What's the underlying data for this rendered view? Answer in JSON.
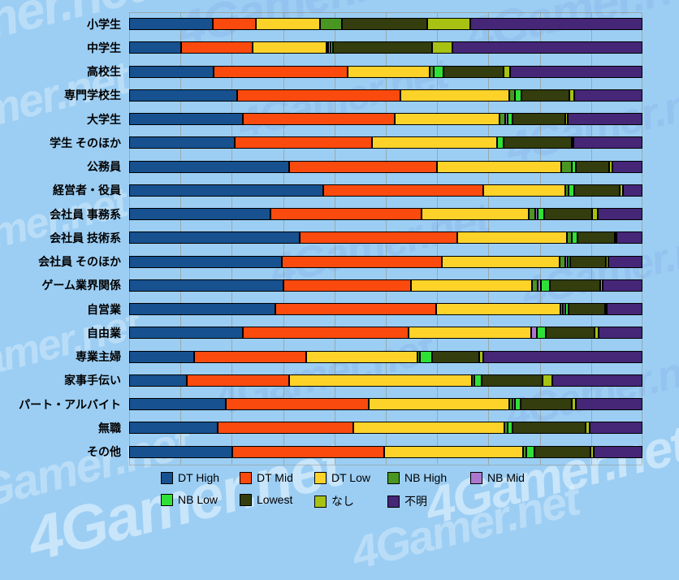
{
  "watermark": "4Gamer.net",
  "page": {
    "background": "#9ccef4",
    "gridline_color": "#968a70"
  },
  "chart_data": {
    "type": "bar",
    "stacked": true,
    "orientation": "horizontal",
    "unit": "percent",
    "xlim": [
      0,
      100
    ],
    "grid": "vertical, every 10%",
    "legend_position": "bottom",
    "categories": [
      "小学生",
      "中学生",
      "高校生",
      "専門学校生",
      "大学生",
      "学生 そのほか",
      "公務員",
      "経営者・役員",
      "会社員 事務系",
      "会社員 技術系",
      "会社員 そのほか",
      "ゲーム業界関係",
      "自営業",
      "自由業",
      "専業主婦",
      "家事手伝い",
      "パート・アルバイト",
      "無職",
      "その他"
    ],
    "series": [
      {
        "name": "DT High",
        "color": "#17518f",
        "values": [
          16.3,
          10.1,
          16.4,
          21.0,
          22.2,
          20.6,
          31.1,
          37.8,
          27.5,
          33.2,
          29.8,
          30.0,
          28.5,
          22.2,
          12.7,
          11.2,
          18.9,
          17.3,
          20.1
        ]
      },
      {
        "name": "DT Mid",
        "color": "#fb4a0d",
        "values": [
          8.4,
          14.0,
          26.1,
          31.9,
          29.5,
          26.7,
          28.8,
          31.2,
          29.4,
          30.7,
          31.1,
          24.9,
          31.3,
          32.2,
          21.8,
          20.0,
          27.7,
          26.4,
          29.6
        ]
      },
      {
        "name": "DT Low",
        "color": "#fdd32a",
        "values": [
          12.5,
          14.3,
          16.0,
          21.1,
          20.4,
          24.4,
          24.3,
          16.0,
          20.9,
          21.4,
          22.9,
          23.6,
          24.2,
          24.0,
          21.6,
          35.5,
          27.5,
          29.4,
          27.1
        ]
      },
      {
        "name": "NB High",
        "color": "#4a9622",
        "values": [
          4.3,
          0.4,
          0.9,
          1.1,
          1.2,
          0,
          2.1,
          0.6,
          1.3,
          0.9,
          1.1,
          1.1,
          0.5,
          0,
          0.6,
          0.5,
          0.6,
          0.7,
          0.5
        ]
      },
      {
        "name": "NB Mid",
        "color": "#ad77d0",
        "values": [
          0,
          0.4,
          0,
          0,
          0.4,
          0,
          0,
          0,
          0.5,
          0,
          0.5,
          0.6,
          0.5,
          1.0,
          0,
          0,
          0.4,
          0,
          0
        ]
      },
      {
        "name": "NB Low",
        "color": "#2fe136",
        "values": [
          0,
          0.6,
          1.9,
          1.3,
          1.0,
          1.2,
          0.7,
          1.1,
          1.3,
          1.2,
          0.6,
          1.7,
          0.6,
          1.7,
          2.3,
          1.4,
          1.2,
          0.9,
          1.6
        ]
      },
      {
        "name": "Lowest",
        "color": "#333d0d",
        "values": [
          16.6,
          19.3,
          11.7,
          9.3,
          10.2,
          13.3,
          6.5,
          8.8,
          9.3,
          7.2,
          6.9,
          9.9,
          7.1,
          9.6,
          9.2,
          12.0,
          9.9,
          14.3,
          11.0
        ]
      },
      {
        "name": "なし",
        "color": "#a7c213",
        "values": [
          8.4,
          3.9,
          1.2,
          1.0,
          0.6,
          0.4,
          0.6,
          0.7,
          1.1,
          0.4,
          0.4,
          0.4,
          0.4,
          0.7,
          0.8,
          1.9,
          0.8,
          0.7,
          0.6
        ]
      },
      {
        "name": "不明",
        "color": "#452677",
        "values": [
          33.5,
          37.0,
          25.8,
          13.3,
          14.5,
          13.4,
          5.9,
          3.8,
          8.7,
          5.0,
          6.7,
          7.8,
          6.9,
          8.6,
          31.0,
          17.5,
          13.0,
          10.3,
          9.5
        ]
      }
    ]
  },
  "legend": {
    "row1": [
      "DT High",
      "DT Mid",
      "DT Low",
      "NB High",
      "NB Mid"
    ],
    "row2": [
      "NB Low",
      "Lowest",
      "なし",
      "不明"
    ]
  }
}
